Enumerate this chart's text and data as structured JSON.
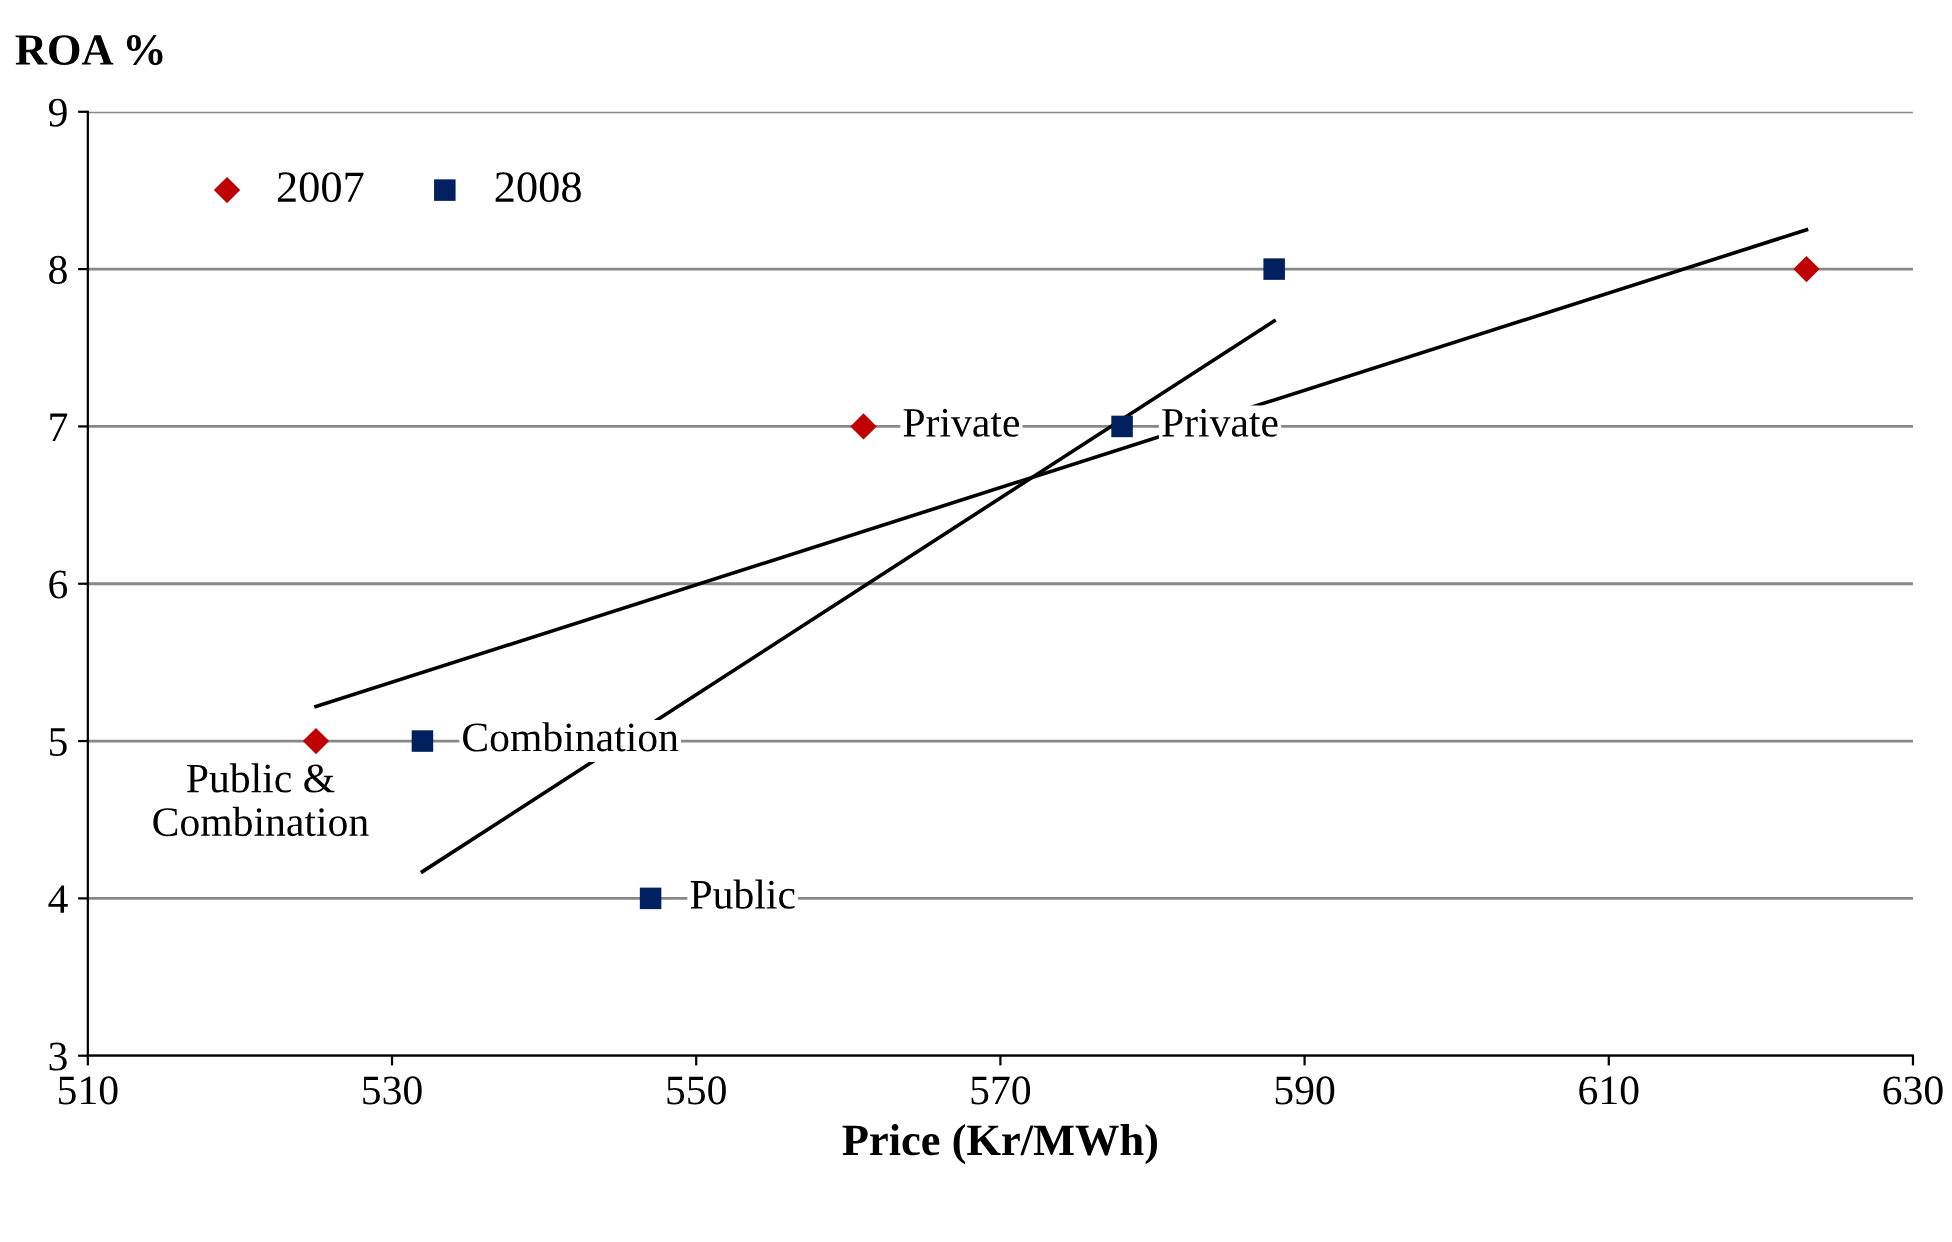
{
  "chart_data": {
    "type": "scatter",
    "xlabel": "Price (Kr/MWh)",
    "ylabel": "ROA %",
    "series": [
      {
        "name": "2007",
        "color": "#c00000",
        "marker": "diamond",
        "x": [
          525,
          561,
          623
        ],
        "values": [
          5,
          7,
          8
        ]
      },
      {
        "name": "2008",
        "color": "#002060",
        "marker": "square",
        "x": [
          532,
          547,
          578,
          588
        ],
        "values": [
          5,
          4,
          7,
          8
        ]
      },
      {
        "type": "line",
        "color": "#000000",
        "x": [
          525,
          623
        ],
        "values": [
          5.22,
          8.25
        ]
      },
      {
        "type": "line",
        "color": "#000000",
        "x": [
          532,
          588
        ],
        "values": [
          4.17,
          7.67
        ]
      }
    ],
    "annotations": [
      {
        "text": "Public &\nCombination",
        "x": 525,
        "y": 5
      },
      {
        "text": "Private",
        "x": 561,
        "y": 7
      },
      {
        "text": "Combination",
        "x": 532,
        "y": 5
      },
      {
        "text": "Public",
        "x": 547,
        "y": 4
      },
      {
        "text": "Private",
        "x": 578,
        "y": 7
      }
    ],
    "xlim": [
      510,
      630
    ],
    "xticks": [
      510,
      530,
      550,
      570,
      590,
      610,
      630
    ],
    "ylim": [
      3,
      9
    ],
    "yticks": [
      3,
      4,
      5,
      6,
      7,
      8,
      9
    ],
    "grid": "y",
    "legend": "top left"
  }
}
